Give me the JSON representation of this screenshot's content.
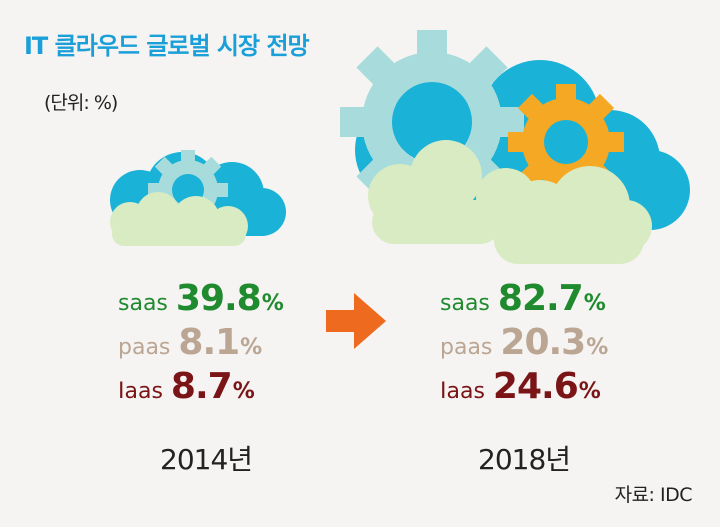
{
  "title": "IT 클라우드 글로벌 시장 전망",
  "unit_label": "(단위: %)",
  "source": "자료: IDC",
  "colors": {
    "title": "#1b9fd9",
    "saas": "#1f8a2e",
    "paas": "#bba593",
    "iaas": "#7a1416",
    "arrow": "#ee6a1e",
    "cloud_blue": "#1ab2d6",
    "cloud_light": "#d8ebc3",
    "gear_teal": "#a8dcdc",
    "gear_orange": "#f5a823"
  },
  "icons": [
    "cloud-icon",
    "gear-icon",
    "arrow-right-icon"
  ],
  "percent_sign": "%",
  "chart_data": {
    "type": "table",
    "categories": [
      "2014년",
      "2018년"
    ],
    "series": [
      {
        "name": "saas",
        "values": [
          39.8,
          82.7
        ],
        "labels": [
          "39.8",
          "82.7"
        ]
      },
      {
        "name": "paas",
        "values": [
          8.1,
          20.3
        ],
        "labels": [
          "8.1",
          "20.3"
        ]
      },
      {
        "name": "Iaas",
        "values": [
          8.7,
          24.6
        ],
        "labels": [
          "8.7",
          "24.6"
        ]
      }
    ]
  }
}
